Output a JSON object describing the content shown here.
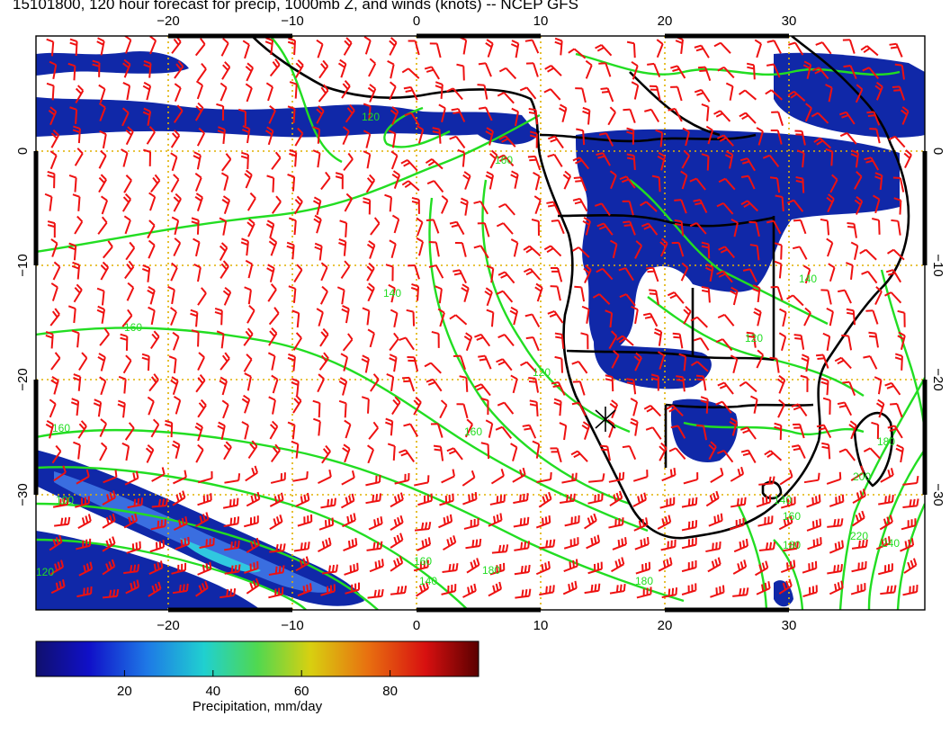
{
  "title": "15101800, 120 hour forecast for precip, 1000mb Z, and winds (knots) -- NCEP GFS",
  "map": {
    "lon_ticks": [
      "−20",
      "−10",
      "0",
      "10",
      "20",
      "30"
    ],
    "lat_ticks": [
      "0",
      "−10",
      "−20",
      "−30"
    ],
    "lon_range": [
      -30,
      41
    ],
    "lat_range": [
      -40,
      10
    ],
    "colors": {
      "frame": "#000000",
      "graticule": "#e0b000",
      "contour": "#22dd22",
      "barb": "#ee1111",
      "coast": "#000000",
      "precip_light": "#1028a8",
      "precip_mid": "#3a6ee0",
      "precip_high": "#30c8e0"
    },
    "contour_labels": [
      "120",
      "140",
      "160",
      "160",
      "160",
      "120",
      "160",
      "180",
      "140",
      "160",
      "180",
      "100",
      "120",
      "180",
      "200",
      "220",
      "240",
      "180",
      "160",
      "140",
      "120",
      "140"
    ]
  },
  "colorbar": {
    "ticks": [
      "20",
      "40",
      "60",
      "80"
    ],
    "label": "Precipitation, mm/day",
    "range": [
      0,
      100
    ]
  }
}
